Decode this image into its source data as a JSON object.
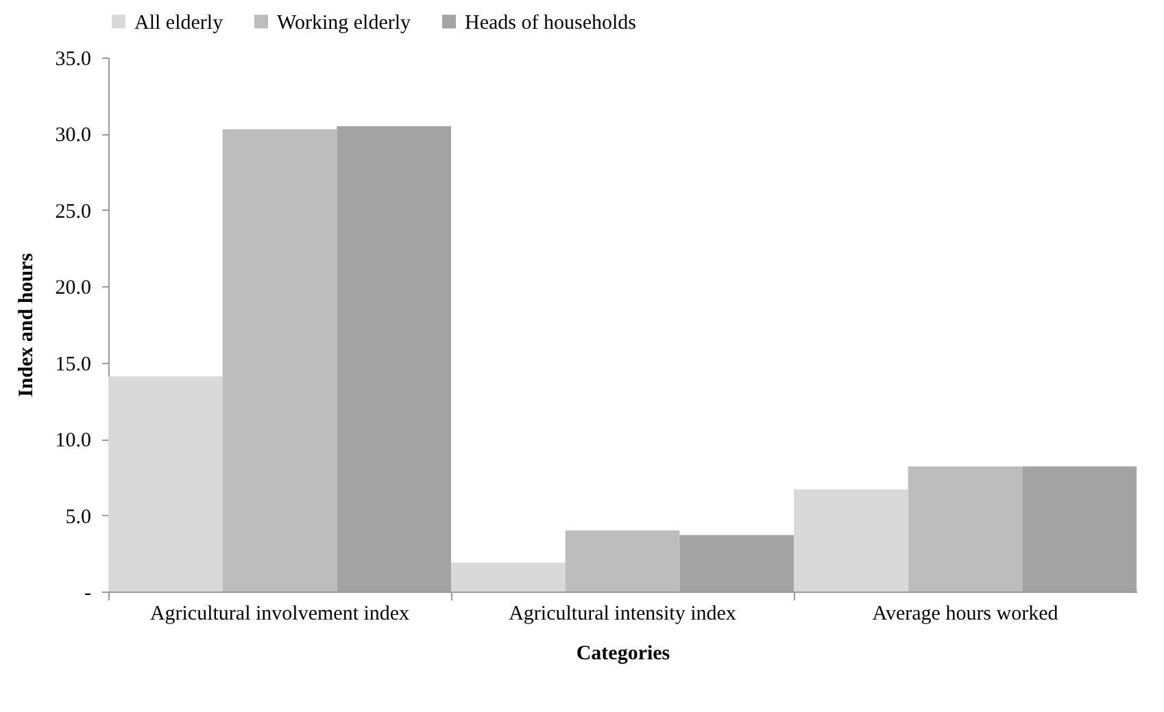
{
  "chart_data": {
    "type": "bar",
    "xlabel": "Categories",
    "ylabel": "Index and hours",
    "categories": [
      "Agricultural involvement index",
      "Agricultural intensity index",
      "Average hours worked"
    ],
    "series": [
      {
        "name": "All elderly",
        "color": "#d9d9d9",
        "values": [
          14.1,
          1.9,
          6.7
        ]
      },
      {
        "name": "Working elderly",
        "color": "#bdbdbd",
        "values": [
          30.3,
          4.0,
          8.2
        ]
      },
      {
        "name": "Heads of households",
        "color": "#a3a3a3",
        "values": [
          30.5,
          3.7,
          8.2
        ]
      }
    ],
    "ylim": [
      0,
      35
    ],
    "yticks": [
      {
        "value": 0,
        "label": "-"
      },
      {
        "value": 5,
        "label": "5.0"
      },
      {
        "value": 10,
        "label": "10.0"
      },
      {
        "value": 15,
        "label": "15.0"
      },
      {
        "value": 20,
        "label": "20.0"
      },
      {
        "value": 25,
        "label": "25.0"
      },
      {
        "value": 30,
        "label": "30.0"
      },
      {
        "value": 35,
        "label": "35.0"
      }
    ],
    "grid": false,
    "legend": "top"
  }
}
